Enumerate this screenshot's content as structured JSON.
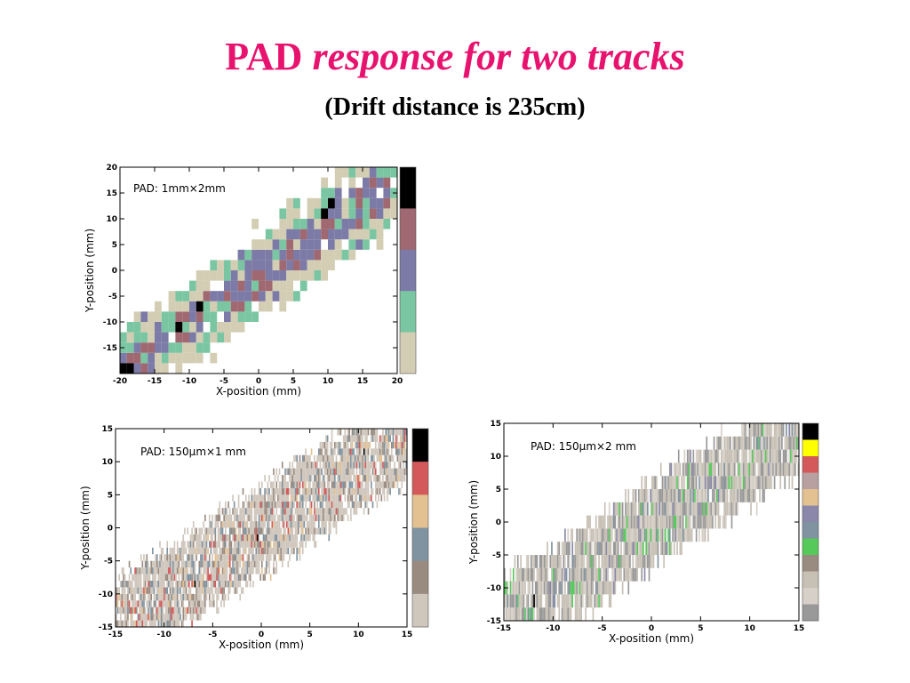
{
  "slide": {
    "title_main": "PAD",
    "title_italic": "response for two tracks",
    "subtitle": "(Drift distance is 235cm)"
  },
  "colors": {
    "title": "#e8136e",
    "background": "#ffffff"
  },
  "chart_data": [
    {
      "type": "heatmap",
      "title": "",
      "annotation": "PAD: 1mm×2mm",
      "xlabel": "X-position (mm)",
      "ylabel": "Y-position (mm)",
      "xlim": [
        -20,
        20
      ],
      "ylim": [
        -20,
        20
      ],
      "xticks": [
        -20,
        -15,
        -10,
        -5,
        0,
        5,
        10,
        15,
        20
      ],
      "yticks": [
        -15,
        -10,
        -5,
        0,
        5,
        10,
        15,
        20
      ],
      "pad_size_mm": [
        1,
        2
      ],
      "tracks": [
        {
          "x0": -19.5,
          "y0": -19,
          "x1": 20,
          "y1": 20
        },
        {
          "x0": -18,
          "y0": -19,
          "x1": 21,
          "y1": 17
        }
      ],
      "hits": [
        [
          -11.8,
          -12
        ],
        [
          -8.7,
          -8
        ],
        [
          9.3,
          10
        ],
        [
          10.2,
          12
        ],
        [
          -20,
          -19
        ],
        [
          -18.6,
          -19
        ]
      ],
      "colorbar": [
        "#000000",
        "#a06870",
        "#7c7aa6",
        "#7bc6a2",
        "#d3cdb3"
      ],
      "grid": false,
      "legend": "none"
    },
    {
      "type": "heatmap",
      "title": "",
      "annotation": "PAD: 150μm×1 mm",
      "xlabel": "X-position (mm)",
      "ylabel": "Y-position (mm)",
      "xlim": [
        -15,
        15
      ],
      "ylim": [
        -15,
        15
      ],
      "xticks": [
        -15,
        -10,
        -5,
        0,
        5,
        10,
        15
      ],
      "yticks": [
        -15,
        -10,
        -5,
        0,
        5,
        10,
        15
      ],
      "pad_size_mm": [
        0.15,
        1
      ],
      "tracks": [
        {
          "x0": -15,
          "y0": -14,
          "x1": 15,
          "y1": 15
        },
        {
          "x0": -14,
          "y0": -15,
          "x1": 15,
          "y1": 13
        }
      ],
      "hits": [
        [
          -6.8,
          -8.3
        ],
        [
          -0.4,
          -1.5
        ],
        [
          10.5,
          11
        ]
      ],
      "colorbar": [
        "#000000",
        "#d4595a",
        "#e3c191",
        "#7f93a0",
        "#9a8b80",
        "#cfc6bc"
      ],
      "grid": false,
      "legend": "none"
    },
    {
      "type": "heatmap",
      "title": "",
      "annotation": "PAD: 150μm×2 mm",
      "xlabel": "X-position (mm)",
      "ylabel": "Y-position (mm)",
      "xlim": [
        -15,
        15
      ],
      "ylim": [
        -15,
        15
      ],
      "xticks": [
        -15,
        -10,
        -5,
        0,
        5,
        10,
        15
      ],
      "yticks": [
        -15,
        -10,
        -5,
        0,
        5,
        10,
        15
      ],
      "pad_size_mm": [
        0.15,
        2
      ],
      "tracks": [
        {
          "x0": -15,
          "y0": -14,
          "x1": 15,
          "y1": 15
        },
        {
          "x0": -14,
          "y0": -15,
          "x1": 15,
          "y1": 13
        }
      ],
      "hits": [
        [
          -11.9,
          -12
        ]
      ],
      "colorbar": [
        "#000000",
        "#ffff00",
        "#d4595a",
        "#b8a0a0",
        "#e3c191",
        "#8a87aa",
        "#7f93a0",
        "#55c95a",
        "#9a8b80",
        "#c7c0b5",
        "#d6d0c8",
        "#999999"
      ],
      "grid": false,
      "legend": "none"
    }
  ]
}
